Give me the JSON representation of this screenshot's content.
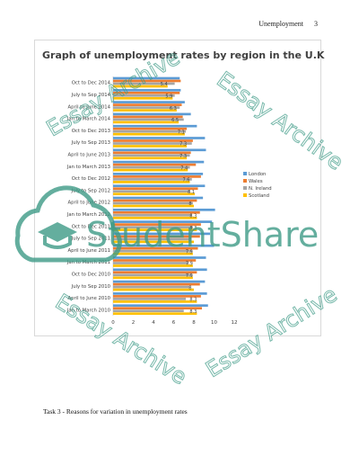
{
  "header": {
    "running_title": "Unemployment",
    "page_number": "3"
  },
  "chart_data": {
    "type": "bar",
    "orientation": "horizontal",
    "title": "Graph of unemployment rates by region in the U.K",
    "categories": [
      "Jan to March 2010",
      "April to June 2010",
      "July to Sep 2010",
      "Oct to Dec 2010",
      "Jan to March 2011",
      "April to June 2011",
      "July to Sep 2011",
      "Oct to Dec 2011",
      "Jan to March 2012",
      "April to June 2012",
      "July to Sep 2012",
      "Oct to Dec 2012",
      "Jan to March 2013",
      "April to June 2013",
      "July to Sep 2013",
      "Oct to Dec 2013",
      "Jan to March 2014",
      "April to June 2014",
      "July to Sep 2014",
      "Oct to Dec 2014"
    ],
    "series": [
      {
        "name": "London",
        "color": "#5b9bd5",
        "values": [
          9.4,
          9.3,
          9.1,
          9.3,
          9.2,
          10.0,
          9.6,
          9.8,
          10.1,
          8.9,
          9.1,
          8.9,
          9.0,
          9.2,
          9.1,
          8.3,
          7.7,
          7.1,
          6.7,
          6.6
        ]
      },
      {
        "name": "Wales",
        "color": "#ed7d31",
        "values": [
          8.8,
          8.7,
          8.6,
          8.3,
          8.2,
          8.4,
          8.6,
          8.7,
          8.6,
          8.3,
          8.4,
          8.7,
          8.2,
          7.7,
          7.9,
          7.3,
          6.9,
          6.8,
          6.6,
          6.7
        ]
      },
      {
        "name": "N. Ireland",
        "color": "#a5a5a5",
        "values": [
          7.0,
          7.2,
          7.6,
          7.8,
          7.5,
          7.8,
          7.6,
          7.9,
          7.8,
          7.9,
          7.6,
          7.8,
          7.6,
          7.6,
          7.8,
          7.2,
          7.0,
          6.6,
          6.1,
          6.1
        ]
      },
      {
        "name": "Scotland",
        "color": "#ffc000",
        "values": [
          8.3,
          8.3,
          8.0,
          7.9,
          7.9,
          7.9,
          8.0,
          8.3,
          8.3,
          8.0,
          8.1,
          7.6,
          7.4,
          7.3,
          7.3,
          7.1,
          6.5,
          6.3,
          5.9,
          5.4
        ]
      }
    ],
    "xlim": [
      0,
      12
    ],
    "xticks": [
      0,
      2,
      4,
      6,
      8,
      10,
      12
    ],
    "grid": false,
    "legend_position": "right"
  },
  "watermark": {
    "brand": "StudentShare",
    "phrases": [
      "Essay Archive",
      "Essay Archive",
      "Essay Archive",
      "Essay Archive"
    ],
    "color": "#3e9b87"
  },
  "body_text": {
    "task_heading": "Task 3 - Reasons for variation in unemployment rates"
  }
}
